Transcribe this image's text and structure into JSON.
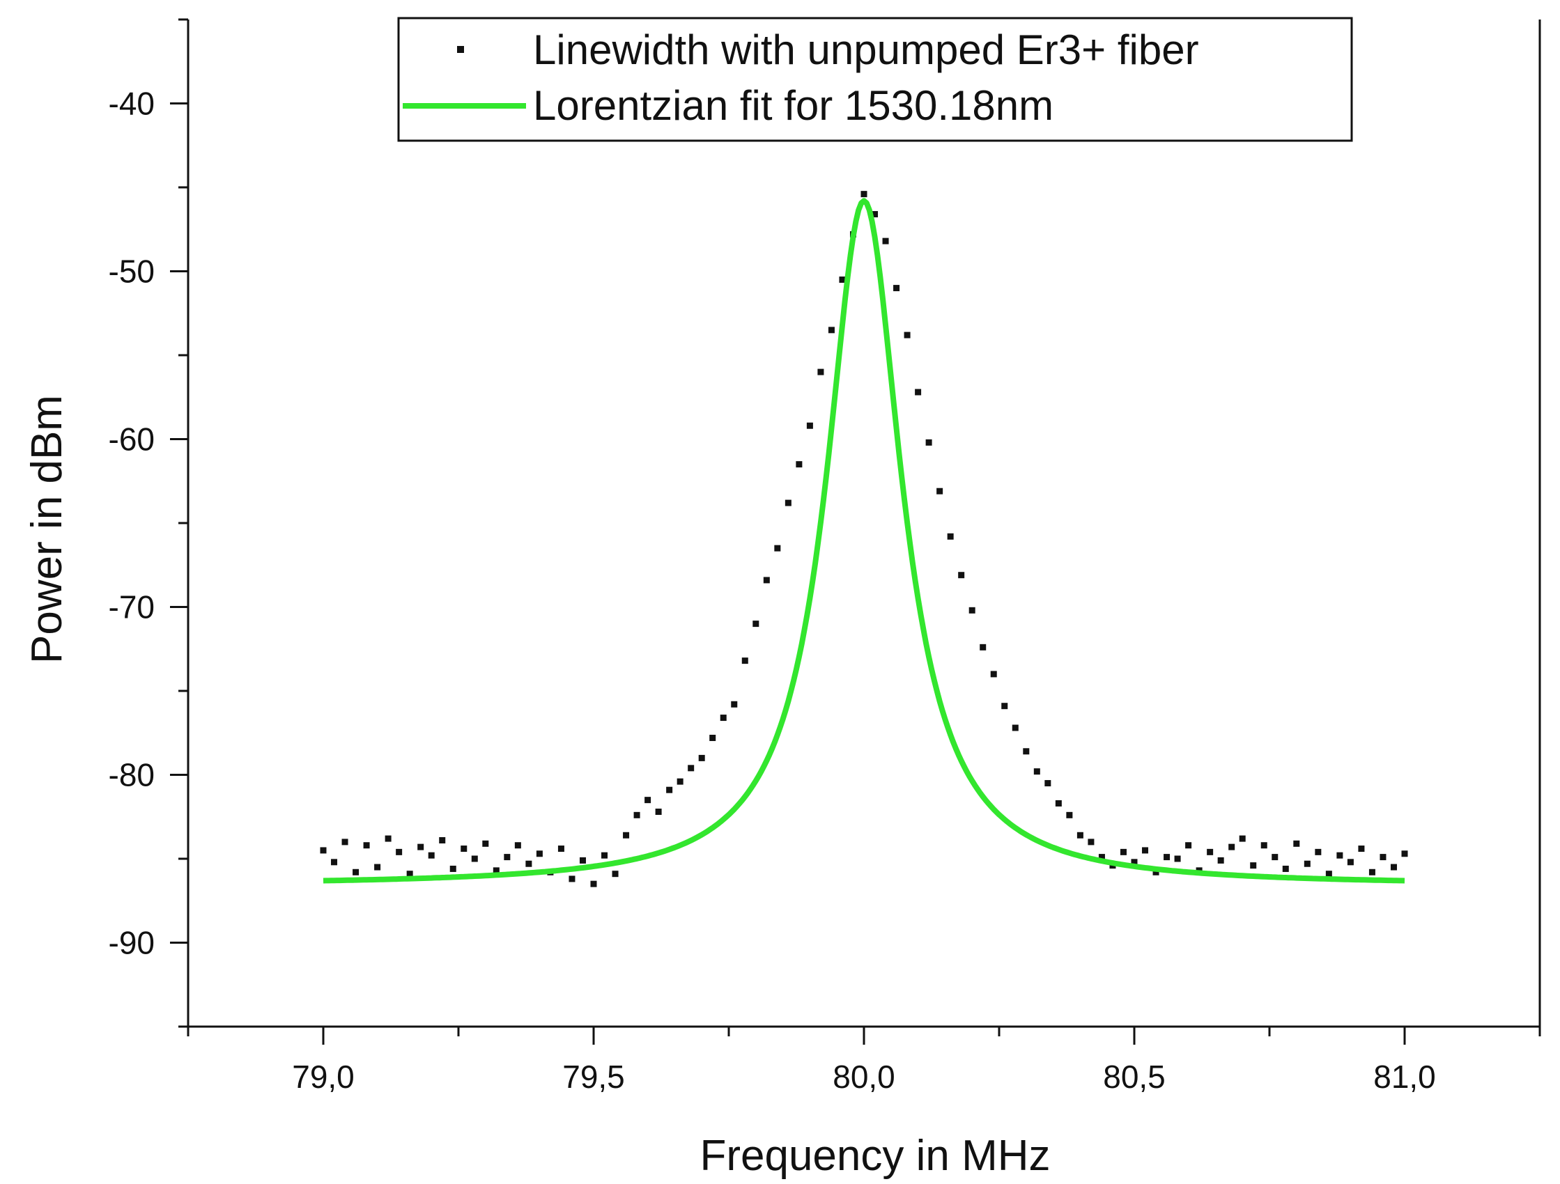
{
  "chart_data": {
    "type": "scatter",
    "title": "",
    "xlabel": "Frequency in MHz",
    "ylabel": "Power in dBm",
    "xlim": [
      78.75,
      81.25
    ],
    "ylim": [
      -95,
      -35
    ],
    "x_ticks": [
      79.0,
      79.5,
      80.0,
      80.5,
      81.0
    ],
    "x_tick_labels": [
      "79,0",
      "79,5",
      "80,0",
      "80,5",
      "81,0"
    ],
    "y_ticks": [
      -90,
      -80,
      -70,
      -60,
      -50,
      -40
    ],
    "y_tick_labels": [
      "-90",
      "-80",
      "-70",
      "-60",
      "-50",
      "-40"
    ],
    "grid": false,
    "legend_position": "top-center",
    "series": [
      {
        "name": "Linewidth with unpumped Er3+ fiber",
        "kind": "scatter",
        "color": "#111111",
        "x": [
          79.0,
          79.02,
          79.04,
          79.06,
          79.08,
          79.1,
          79.12,
          79.14,
          79.16,
          79.18,
          79.2,
          79.22,
          79.24,
          79.26,
          79.28,
          79.3,
          79.32,
          79.34,
          79.36,
          79.38,
          79.4,
          79.42,
          79.44,
          79.46,
          79.48,
          79.5,
          79.52,
          79.54,
          79.56,
          79.58,
          79.6,
          79.62,
          79.64,
          79.66,
          79.68,
          79.7,
          79.72,
          79.74,
          79.76,
          79.78,
          79.8,
          79.82,
          79.84,
          79.86,
          79.88,
          79.9,
          79.92,
          79.94,
          79.96,
          79.98,
          80.0,
          80.02,
          80.04,
          80.06,
          80.08,
          80.1,
          80.12,
          80.14,
          80.16,
          80.18,
          80.2,
          80.22,
          80.24,
          80.26,
          80.28,
          80.3,
          80.32,
          80.34,
          80.36,
          80.38,
          80.4,
          80.42,
          80.44,
          80.46,
          80.48,
          80.5,
          80.52,
          80.54,
          80.56,
          80.58,
          80.6,
          80.62,
          80.64,
          80.66,
          80.68,
          80.7,
          80.72,
          80.74,
          80.76,
          80.78,
          80.8,
          80.82,
          80.84,
          80.86,
          80.88,
          80.9,
          80.92,
          80.94,
          80.96,
          80.98,
          81.0
        ],
        "y": [
          -84.5,
          -85.2,
          -84.0,
          -85.8,
          -84.2,
          -85.5,
          -83.8,
          -84.6,
          -85.9,
          -84.3,
          -84.8,
          -83.9,
          -85.6,
          -84.4,
          -85.0,
          -84.1,
          -85.7,
          -84.9,
          -84.2,
          -85.3,
          -84.7,
          -85.8,
          -84.4,
          -86.2,
          -85.1,
          -86.5,
          -84.8,
          -85.9,
          -83.6,
          -82.4,
          -81.5,
          -82.2,
          -80.9,
          -80.4,
          -79.6,
          -79.0,
          -77.8,
          -76.6,
          -75.8,
          -73.2,
          -71.0,
          -68.4,
          -66.5,
          -63.8,
          -61.5,
          -59.2,
          -56.0,
          -53.5,
          -50.5,
          -47.8,
          -45.4,
          -46.6,
          -48.2,
          -51.0,
          -53.8,
          -57.2,
          -60.2,
          -63.1,
          -65.8,
          -68.1,
          -70.2,
          -72.4,
          -74.0,
          -75.9,
          -77.2,
          -78.6,
          -79.8,
          -80.5,
          -81.7,
          -82.4,
          -83.6,
          -84.0,
          -84.9,
          -85.4,
          -84.6,
          -85.2,
          -84.5,
          -85.8,
          -84.9,
          -85.0,
          -84.2,
          -85.7,
          -84.6,
          -85.1,
          -84.3,
          -83.8,
          -85.4,
          -84.2,
          -84.9,
          -85.6,
          -84.1,
          -85.3,
          -84.6,
          -85.9,
          -84.8,
          -85.2,
          -84.4,
          -85.8,
          -84.9,
          -85.5,
          -84.7
        ]
      },
      {
        "name": "Lorentzian fit for 1530.18nm",
        "kind": "line",
        "color": "#33e62e",
        "model": "lorentzian",
        "center": 80.0,
        "hwhm": 0.085,
        "floor_dbm": -86.6,
        "peak_dbm": -45.8,
        "x_range": [
          79.0,
          81.0
        ]
      }
    ]
  }
}
